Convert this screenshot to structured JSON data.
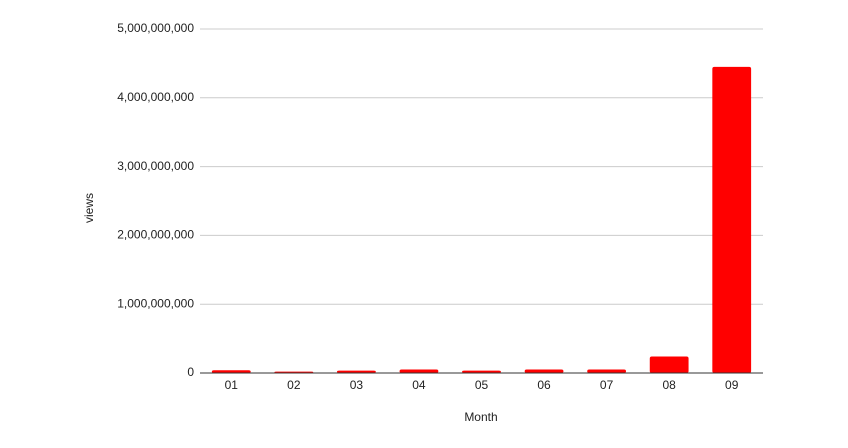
{
  "chart_data": {
    "type": "bar",
    "x_label": "Month",
    "y_label": "views",
    "categories": [
      "01",
      "02",
      "03",
      "04",
      "05",
      "06",
      "07",
      "08",
      "09"
    ],
    "values": [
      40000000,
      20000000,
      35000000,
      50000000,
      35000000,
      50000000,
      50000000,
      240000000,
      4450000000
    ],
    "color": "#ff0000",
    "ylim": [
      0,
      5000000000
    ],
    "yticks": [
      0,
      {
        "value": 1000000000,
        "label": "1,000,000,000"
      },
      {
        "value": 2000000000,
        "label": "2,000,000,000"
      },
      {
        "value": 3000000000,
        "label": "3,000,000,000"
      },
      {
        "value": 4000000000,
        "label": "4,000,000,000"
      },
      {
        "value": 5000000000,
        "label": "5,000,000,000"
      }
    ],
    "grid": true
  }
}
